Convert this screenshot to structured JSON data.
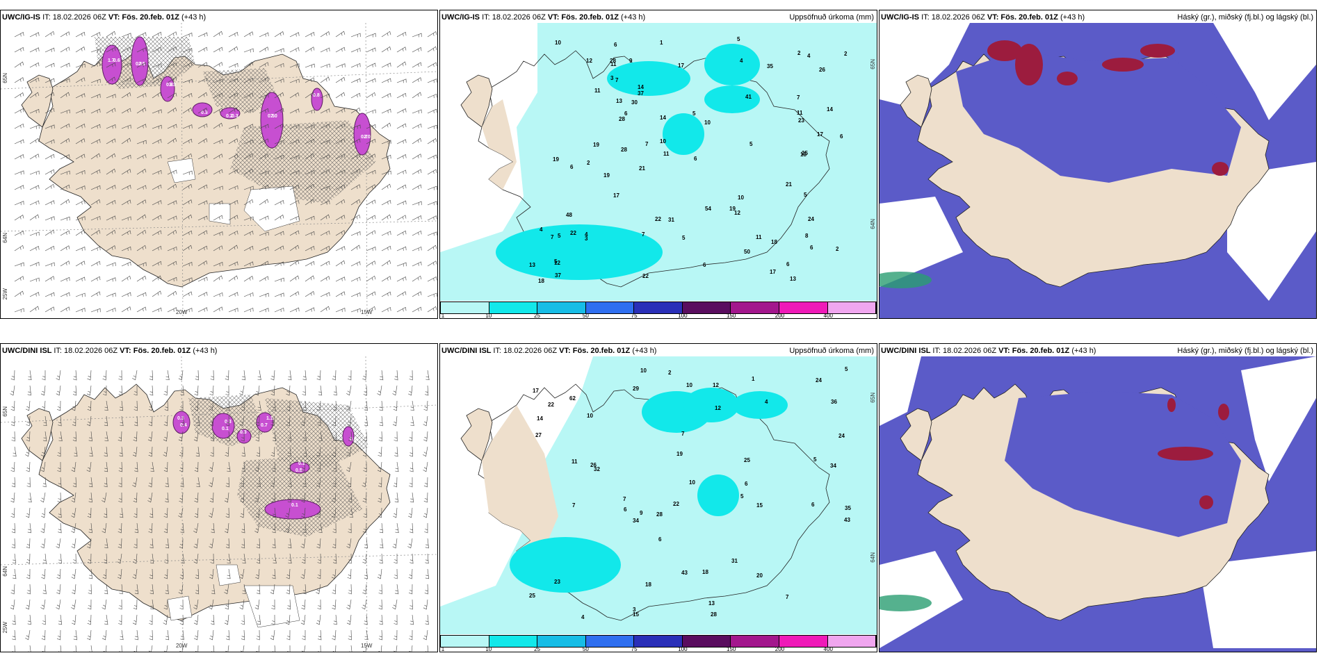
{
  "panels": [
    {
      "model": "UWC/IG-IS",
      "it_label": "IT:",
      "it": "18.02.2026 06Z",
      "vt_label": "VT:",
      "vt": "Fös. 20.feb. 01Z",
      "lead": "(+43 h)",
      "right_title": "",
      "lat_labels": [
        "65N",
        "64N",
        "25W"
      ],
      "lon_labels": [
        "20W",
        "15W"
      ]
    },
    {
      "model": "UWC/IG-IS",
      "it_label": "IT:",
      "it": "18.02.2026 06Z",
      "vt_label": "VT:",
      "vt": "Fös. 20.feb. 01Z",
      "lead": "(+43 h)",
      "right_title": "Uppsöfnuð úrkoma (mm)",
      "lat_labels": [
        "65N",
        "64N"
      ],
      "lon_labels": []
    },
    {
      "model": "UWC/IG-IS",
      "it_label": "IT:",
      "it": "18.02.2026 06Z",
      "vt_label": "VT:",
      "vt": "Fös. 20.feb. 01Z",
      "lead": "(+43 h)",
      "right_title": "Háský (gr.), miðský (fj.bl.) og lágský (bl.)",
      "lat_labels": [],
      "lon_labels": []
    },
    {
      "model": "UWC/DINI ISL",
      "it_label": "IT:",
      "it": "18.02.2026 06Z",
      "vt_label": "VT:",
      "vt": "Fös. 20.feb. 01Z",
      "lead": "(+43 h)",
      "right_title": "",
      "lat_labels": [
        "65N",
        "64N",
        "25W"
      ],
      "lon_labels": [
        "20W",
        "15W"
      ]
    },
    {
      "model": "UWC/DINI ISL",
      "it_label": "IT:",
      "it": "18.02.2026 06Z",
      "vt_label": "VT:",
      "vt": "Fös. 20.feb. 01Z",
      "lead": "(+43 h)",
      "right_title": "Uppsöfnuð úrkoma (mm)",
      "lat_labels": [
        "65N",
        "64N"
      ],
      "lon_labels": []
    },
    {
      "model": "UWC/DINI ISL",
      "it_label": "IT:",
      "it": "18.02.2026 06Z",
      "vt_label": "VT:",
      "vt": "Fös. 20.feb. 01Z",
      "lead": "(+43 h)",
      "right_title": "Háský (gr.), miðský (fj.bl.) og lágský (bl.)",
      "lat_labels": [],
      "lon_labels": []
    }
  ],
  "precip_scale": {
    "labels": [
      "1",
      "10",
      "25",
      "50",
      "75",
      "100",
      "150",
      "200",
      "400"
    ],
    "colors": [
      "#b8f7f5",
      "#12e8ea",
      "#17bde6",
      "#2f6ff0",
      "#2a2fb8",
      "#5a0d5f",
      "#a3178d",
      "#ef1ab8",
      "#f0a6ef"
    ]
  },
  "precip_values_top": [
    "4",
    "7",
    "2",
    "5",
    "7",
    "6",
    "2",
    "13",
    "50",
    "48",
    "54",
    "41",
    "12",
    "22",
    "17",
    "18",
    "5",
    "10",
    "30",
    "35",
    "28",
    "28",
    "26",
    "22",
    "3",
    "5",
    "10",
    "31",
    "25",
    "23",
    "14",
    "28",
    "9",
    "19",
    "12",
    "22",
    "17",
    "24",
    "13",
    "37",
    "19",
    "14",
    "11",
    "11",
    "19",
    "10",
    "6",
    "4",
    "3",
    "6",
    "11",
    "5",
    "7",
    "17",
    "17",
    "5",
    "2",
    "10",
    "13",
    "21",
    "14",
    "18",
    "6",
    "4",
    "1",
    "6",
    "8",
    "5",
    "2",
    "12",
    "19",
    "21",
    "18",
    "37",
    "11",
    "6",
    "7",
    "6",
    "6",
    "5",
    "4",
    "7",
    "11"
  ],
  "precip_values_bottom": [
    "6",
    "6",
    "6",
    "7",
    "7",
    "7",
    "26",
    "23",
    "24",
    "34",
    "43",
    "62",
    "43",
    "31",
    "32",
    "25",
    "24",
    "10",
    "10",
    "28",
    "34",
    "18",
    "25",
    "14",
    "27",
    "12",
    "35",
    "15",
    "12",
    "2",
    "1",
    "3",
    "7",
    "29",
    "10",
    "9",
    "5",
    "10",
    "19",
    "36",
    "13",
    "22",
    "18",
    "4",
    "5",
    "11",
    "15",
    "28",
    "22",
    "20",
    "17",
    "6",
    "4",
    "5"
  ],
  "contour_values_left_top": [
    "1.7",
    "2.5",
    "3.3",
    "0.2",
    "7.0",
    "2.0",
    "0.8",
    "0.3",
    "0.6",
    "0.1",
    "0.8",
    "0.3",
    "0.5",
    "0.7"
  ],
  "contour_values_left_bottom": [
    "0.3",
    "0.1",
    "1.1",
    "0.5",
    "0.1",
    "0.6",
    "0.3",
    "0.4",
    "0.3",
    "0.7",
    "0.1"
  ]
}
